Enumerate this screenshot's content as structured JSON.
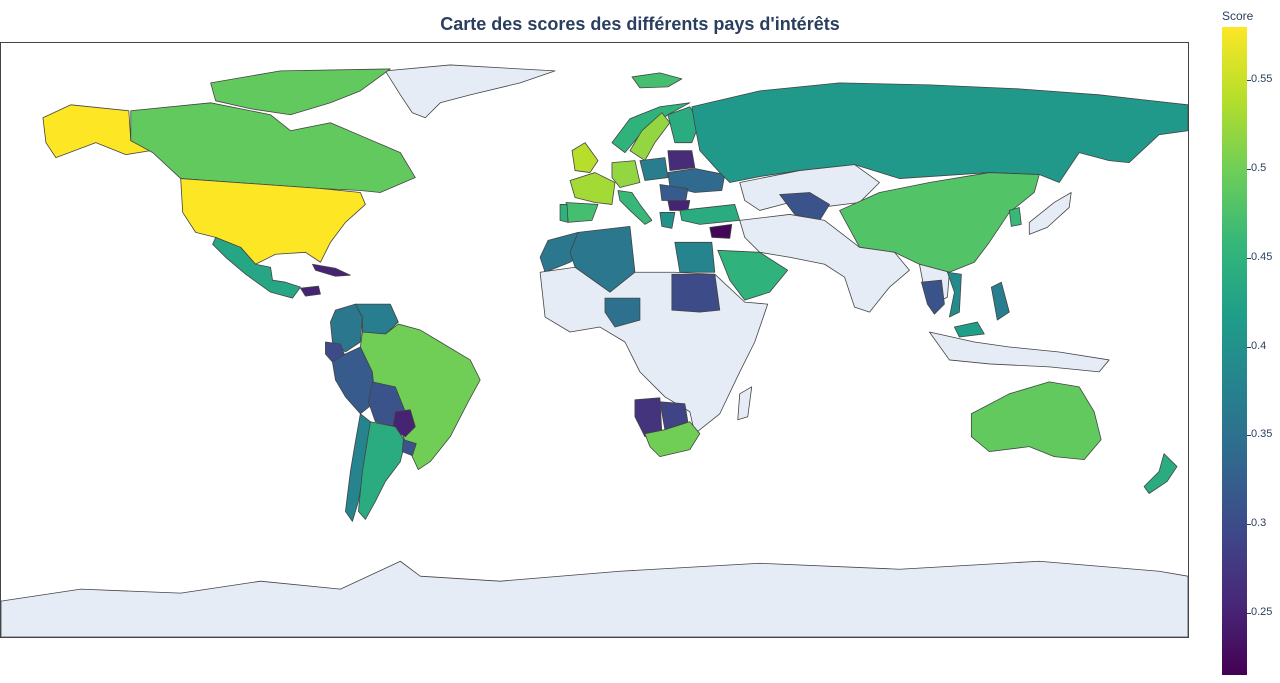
{
  "title": "Carte des scores des différents pays d'intérêts",
  "colorbar": {
    "title": "Score",
    "ticks": [
      "0.55",
      "0.5",
      "0.45",
      "0.4",
      "0.35",
      "0.3",
      "0.25"
    ],
    "tick_values": [
      0.55,
      0.5,
      0.45,
      0.4,
      0.35,
      0.3,
      0.25
    ],
    "min": 0.215,
    "max": 0.58,
    "colorscale": [
      "#440154",
      "#482878",
      "#3e4989",
      "#31688e",
      "#26828e",
      "#1f9e89",
      "#35b779",
      "#6ece58",
      "#b5de2b",
      "#fde725"
    ]
  },
  "no_data_color": "#e5ecf6",
  "countries": [
    {
      "name": "Alaska (United States)",
      "score": 0.58
    },
    {
      "name": "United States",
      "score": 0.58
    },
    {
      "name": "Canada",
      "score": 0.49
    },
    {
      "name": "Mexico",
      "score": 0.43
    },
    {
      "name": "Cuba",
      "score": 0.25
    },
    {
      "name": "Honduras",
      "score": 0.25
    },
    {
      "name": "Colombia",
      "score": 0.36
    },
    {
      "name": "Venezuela",
      "score": 0.37
    },
    {
      "name": "Ecuador",
      "score": 0.3
    },
    {
      "name": "Peru",
      "score": 0.32
    },
    {
      "name": "Brazil",
      "score": 0.5
    },
    {
      "name": "Bolivia",
      "score": 0.31
    },
    {
      "name": "Paraguay",
      "score": 0.25
    },
    {
      "name": "Chile",
      "score": 0.38
    },
    {
      "name": "Argentina",
      "score": 0.44
    },
    {
      "name": "Uruguay",
      "score": 0.31
    },
    {
      "name": "Iceland",
      "score": 0.47
    },
    {
      "name": "United Kingdom",
      "score": 0.54
    },
    {
      "name": "France",
      "score": 0.53
    },
    {
      "name": "Spain",
      "score": 0.47
    },
    {
      "name": "Portugal",
      "score": 0.45
    },
    {
      "name": "Germany",
      "score": 0.52
    },
    {
      "name": "Italy",
      "score": 0.46
    },
    {
      "name": "Poland",
      "score": 0.37
    },
    {
      "name": "Belarus",
      "score": 0.26
    },
    {
      "name": "Ukraine",
      "score": 0.34
    },
    {
      "name": "Romania",
      "score": 0.32
    },
    {
      "name": "Bulgaria",
      "score": 0.25
    },
    {
      "name": "Greece",
      "score": 0.4
    },
    {
      "name": "Turkey",
      "score": 0.44
    },
    {
      "name": "Norway",
      "score": 0.45
    },
    {
      "name": "Sweden",
      "score": 0.52
    },
    {
      "name": "Finland",
      "score": 0.44
    },
    {
      "name": "Russia",
      "score": 0.41
    },
    {
      "name": "Kazakhstan (Uzbekistan)",
      "score": 0.31
    },
    {
      "name": "Syria",
      "score": 0.22
    },
    {
      "name": "Morocco",
      "score": 0.36
    },
    {
      "name": "Algeria",
      "score": 0.36
    },
    {
      "name": "Egypt",
      "score": 0.38
    },
    {
      "name": "Sudan",
      "score": 0.3
    },
    {
      "name": "Nigeria",
      "score": 0.35
    },
    {
      "name": "Saudi Arabia",
      "score": 0.45
    },
    {
      "name": "Namibia",
      "score": 0.27
    },
    {
      "name": "Botswana",
      "score": 0.29
    },
    {
      "name": "South Africa",
      "score": 0.5
    },
    {
      "name": "China",
      "score": 0.48
    },
    {
      "name": "South Korea",
      "score": 0.46
    },
    {
      "name": "Japan",
      "score": null
    },
    {
      "name": "Thailand",
      "score": 0.31
    },
    {
      "name": "Vietnam",
      "score": 0.39
    },
    {
      "name": "Philippines",
      "score": 0.37
    },
    {
      "name": "Malaysia",
      "score": 0.42
    },
    {
      "name": "Australia",
      "score": 0.49
    },
    {
      "name": "New Zealand",
      "score": 0.44
    },
    {
      "name": "Antarctica",
      "score": null
    }
  ]
}
